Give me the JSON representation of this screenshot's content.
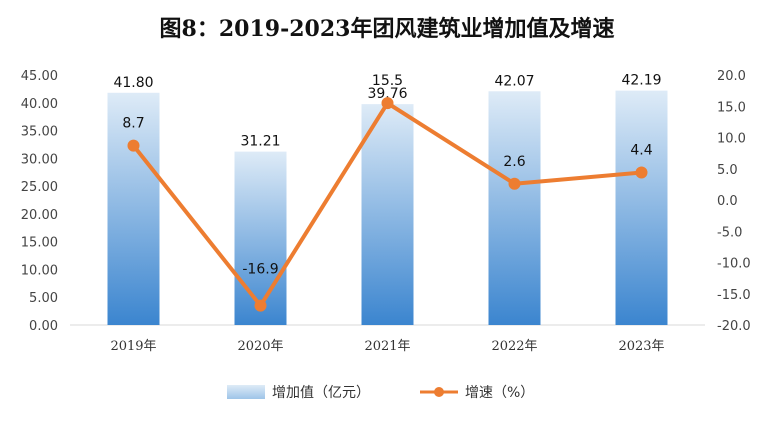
{
  "chart_data": {
    "type": "bar",
    "title": "图8：2019-2023年团风建筑业增加值及增速",
    "categories": [
      "2019年",
      "2020年",
      "2021年",
      "2022年",
      "2023年"
    ],
    "series": [
      {
        "name": "增加值（亿元）",
        "type": "bar",
        "axis": "left",
        "values": [
          41.8,
          31.21,
          39.76,
          42.07,
          42.19
        ],
        "labels": [
          "41.80",
          "31.21",
          "39.76",
          "42.07",
          "42.19"
        ]
      },
      {
        "name": "增速（%）",
        "type": "line",
        "axis": "right",
        "values": [
          8.7,
          -16.9,
          15.5,
          2.6,
          4.4
        ],
        "labels": [
          "8.7",
          "-16.9",
          "15.5",
          "2.6",
          "4.4"
        ]
      }
    ],
    "y_left": {
      "min": 0,
      "max": 45,
      "step": 5,
      "ticks": [
        "0.00",
        "5.00",
        "10.00",
        "15.00",
        "20.00",
        "25.00",
        "30.00",
        "35.00",
        "40.00",
        "45.00"
      ]
    },
    "y_right": {
      "min": -20,
      "max": 20,
      "step": 5,
      "ticks": [
        "-20.0",
        "-15.0",
        "-10.0",
        "-5.0",
        "0.0",
        "5.0",
        "10.0",
        "15.0",
        "20.0"
      ]
    },
    "grid": false,
    "legend": "bottom",
    "colors": {
      "bar_top": "#deebf7",
      "bar_bottom": "#3b85cf",
      "line": "#ed7d31",
      "legend_bar": "#9ec4e8"
    }
  }
}
